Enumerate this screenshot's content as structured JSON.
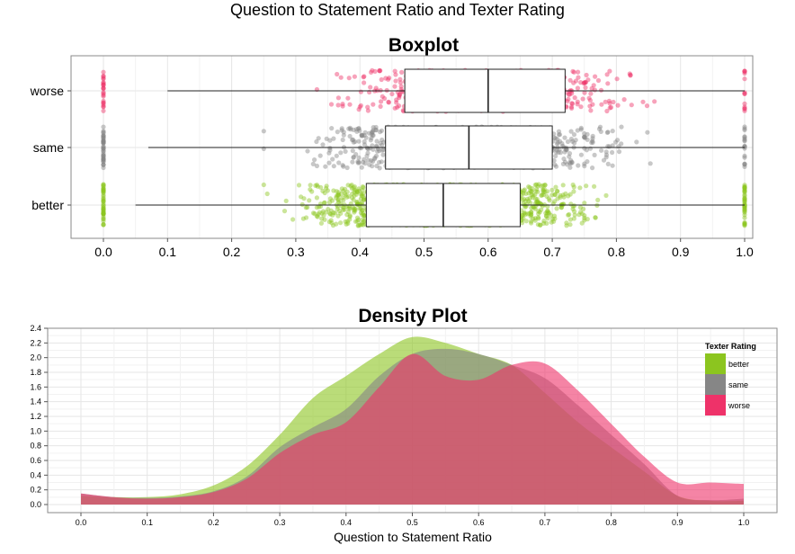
{
  "figure_title": "Question to Statement Ratio and Texter Rating",
  "colors": {
    "better": "#8cc51f",
    "same": "#868686",
    "worse": "#ee3269",
    "panel_border": "#8a8a8a",
    "grid": "#e6e6e6"
  },
  "chart_data": [
    {
      "type": "box",
      "title": "Boxplot",
      "orientation": "horizontal",
      "categories": [
        "worse",
        "same",
        "better"
      ],
      "xlim": [
        0.0,
        1.0
      ],
      "x_ticks": [
        "0.0",
        "0.1",
        "0.2",
        "0.3",
        "0.4",
        "0.5",
        "0.6",
        "0.7",
        "0.8",
        "0.9",
        "1.0"
      ],
      "grid": true,
      "jittered_points": true,
      "series": [
        {
          "name": "worse",
          "whisker_low": 0.1,
          "q1": 0.47,
          "median": 0.6,
          "q3": 0.72,
          "whisker_high": 1.0
        },
        {
          "name": "same",
          "whisker_low": 0.07,
          "q1": 0.44,
          "median": 0.57,
          "q3": 0.7,
          "whisker_high": 1.0
        },
        {
          "name": "better",
          "whisker_low": 0.05,
          "q1": 0.41,
          "median": 0.53,
          "q3": 0.65,
          "whisker_high": 1.0
        }
      ]
    },
    {
      "type": "area",
      "title": "Density Plot",
      "xlabel": "Question to Statement Ratio",
      "ylabel": "",
      "xlim": [
        0.0,
        1.0
      ],
      "ylim": [
        0.0,
        2.4
      ],
      "x_ticks": [
        "0.0",
        "0.1",
        "0.2",
        "0.3",
        "0.4",
        "0.5",
        "0.6",
        "0.7",
        "0.8",
        "0.9",
        "1.0"
      ],
      "y_ticks": [
        "0.0",
        "0.2",
        "0.4",
        "0.6",
        "0.8",
        "1.0",
        "1.2",
        "1.4",
        "1.6",
        "1.8",
        "2.0",
        "2.2",
        "2.4"
      ],
      "grid": true,
      "legend": {
        "title": "Texter Rating",
        "placement": "top-right",
        "entries": [
          "better",
          "same",
          "worse"
        ]
      },
      "x": [
        0.0,
        0.05,
        0.1,
        0.15,
        0.2,
        0.25,
        0.3,
        0.35,
        0.4,
        0.45,
        0.5,
        0.55,
        0.6,
        0.65,
        0.7,
        0.75,
        0.8,
        0.85,
        0.9,
        0.95,
        1.0
      ],
      "series": [
        {
          "name": "better",
          "values": [
            0.12,
            0.1,
            0.1,
            0.14,
            0.26,
            0.52,
            0.95,
            1.45,
            1.75,
            2.05,
            2.28,
            2.2,
            2.05,
            1.9,
            1.52,
            1.12,
            0.78,
            0.45,
            0.12,
            0.05,
            0.05
          ]
        },
        {
          "name": "same",
          "values": [
            0.15,
            0.1,
            0.09,
            0.11,
            0.18,
            0.38,
            0.78,
            1.05,
            1.3,
            1.75,
            2.05,
            2.12,
            2.05,
            1.9,
            1.72,
            1.35,
            0.95,
            0.55,
            0.12,
            0.06,
            0.08
          ]
        },
        {
          "name": "worse",
          "values": [
            0.15,
            0.1,
            0.08,
            0.1,
            0.17,
            0.35,
            0.7,
            0.95,
            1.12,
            1.6,
            2.05,
            1.75,
            1.7,
            1.9,
            1.92,
            1.55,
            1.1,
            0.65,
            0.3,
            0.3,
            0.28
          ]
        }
      ]
    }
  ]
}
